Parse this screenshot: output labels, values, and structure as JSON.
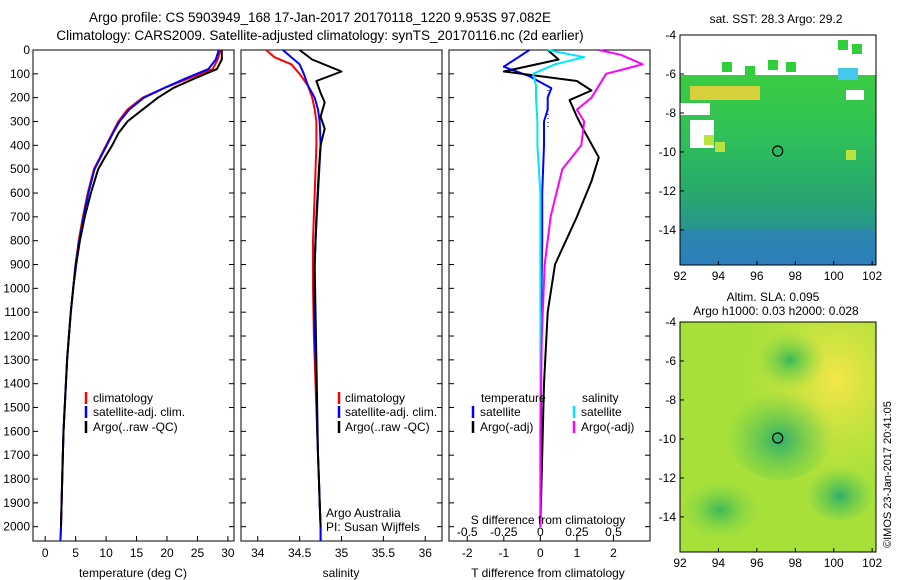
{
  "header": {
    "line1": "Argo profile: CS 5903949_168 17-Jan-2017 20170118_1220 9.953S 97.082E",
    "line2": "Climatology: CARS2009. Satellite-adjusted climatology: synTS_20170116.nc (2d earlier)"
  },
  "colors": {
    "climatology": "#ff0000",
    "satellite": "#0000ff",
    "argo": "#000000",
    "satellite_s": "#00e5ff",
    "argo_s": "#ff00ff"
  },
  "chart_data": [
    {
      "type": "line",
      "xlabel": "temperature (deg C)",
      "ylabel": "",
      "xlim": [
        -2,
        31
      ],
      "ylim": [
        2060,
        0
      ],
      "xticks": [
        0,
        5,
        10,
        15,
        20,
        25,
        30
      ],
      "yticks": [
        0,
        100,
        200,
        300,
        400,
        500,
        600,
        700,
        800,
        900,
        1000,
        1100,
        1200,
        1300,
        1400,
        1500,
        1600,
        1700,
        1800,
        1900,
        2000
      ],
      "legend": [
        "climatology",
        "satellite-adj. clim.",
        "Argo(..raw -QC)"
      ],
      "series": [
        {
          "name": "climatology",
          "color": "#ff0000",
          "x": [
            28.8,
            28.3,
            27.5,
            23.5,
            19.5,
            16.0,
            13.5,
            12.0,
            11.0,
            10.0,
            9.0,
            8.0,
            7.0,
            6.2,
            5.5,
            5.0,
            4.6,
            4.2,
            3.9,
            3.6,
            3.4,
            3.2,
            3.0,
            2.8,
            2.6,
            2.5
          ],
          "y": [
            0,
            40,
            80,
            120,
            160,
            200,
            250,
            300,
            350,
            400,
            450,
            500,
            600,
            700,
            800,
            900,
            1000,
            1100,
            1200,
            1300,
            1400,
            1500,
            1600,
            1800,
            2000,
            2060
          ]
        },
        {
          "name": "satellite-adj. clim.",
          "color": "#0000ff",
          "x": [
            28.5,
            28.0,
            26.8,
            23.0,
            19.5,
            16.2,
            13.8,
            12.2,
            11.1,
            10.1,
            9.1,
            8.1,
            7.1,
            6.3,
            5.6,
            5.0,
            4.6,
            4.2,
            3.9,
            3.6,
            3.4,
            3.2,
            3.0,
            2.8,
            2.6,
            2.5
          ],
          "y": [
            0,
            40,
            80,
            120,
            160,
            200,
            250,
            300,
            350,
            400,
            450,
            500,
            600,
            700,
            800,
            900,
            1000,
            1100,
            1200,
            1300,
            1400,
            1500,
            1600,
            1800,
            2000,
            2060
          ]
        },
        {
          "name": "Argo(..raw -QC)",
          "color": "#000000",
          "x": [
            29.0,
            29.0,
            28.2,
            24.5,
            21.0,
            18.5,
            16.0,
            13.5,
            12.0,
            11.0,
            9.8,
            8.7,
            7.5,
            6.5,
            5.7,
            5.1,
            4.6,
            4.2,
            3.9,
            3.6,
            3.4,
            3.2,
            3.0,
            2.8,
            2.6
          ],
          "y": [
            0,
            40,
            80,
            120,
            160,
            200,
            250,
            300,
            350,
            400,
            450,
            500,
            600,
            700,
            800,
            900,
            1000,
            1100,
            1200,
            1300,
            1400,
            1500,
            1600,
            1800,
            2000
          ]
        }
      ]
    },
    {
      "type": "line",
      "xlabel": "salinity",
      "ylabel": "",
      "xlim": [
        33.8,
        36.2
      ],
      "ylim": [
        2060,
        0
      ],
      "xticks": [
        34,
        34.5,
        35,
        35.5,
        36
      ],
      "legend": [
        "climatology",
        "satellite-adj. clim.",
        "Argo(..raw -QC)"
      ],
      "annotations": [
        "Argo Australia",
        "PI: Susan Wijffels"
      ],
      "series": [
        {
          "name": "climatology",
          "color": "#ff0000",
          "x": [
            34.1,
            34.2,
            34.4,
            34.5,
            34.6,
            34.65,
            34.68,
            34.7,
            34.7,
            34.68,
            34.66,
            34.66,
            34.67,
            34.69,
            34.71,
            34.72,
            34.73,
            34.74,
            34.75,
            34.75
          ],
          "y": [
            0,
            30,
            60,
            100,
            150,
            200,
            250,
            300,
            400,
            600,
            800,
            1000,
            1200,
            1400,
            1600,
            1700,
            1800,
            1900,
            2000,
            2060
          ]
        },
        {
          "name": "satellite-adj. clim.",
          "color": "#0000ff",
          "x": [
            34.3,
            34.4,
            34.5,
            34.55,
            34.6,
            34.68,
            34.72,
            34.74,
            34.75,
            34.72,
            34.69,
            34.67,
            34.68,
            34.7,
            34.71,
            34.72,
            34.73,
            34.74,
            34.75,
            34.75
          ],
          "y": [
            0,
            30,
            60,
            100,
            150,
            200,
            250,
            300,
            400,
            600,
            800,
            1000,
            1200,
            1400,
            1600,
            1700,
            1800,
            1900,
            2000,
            2060
          ]
        },
        {
          "name": "Argo(..raw -QC)",
          "color": "#000000",
          "x": [
            34.5,
            34.65,
            35.0,
            34.7,
            34.75,
            34.8,
            34.75,
            34.8,
            34.75,
            34.73,
            34.7,
            34.68,
            34.69,
            34.7,
            34.71,
            34.72,
            34.73,
            34.74,
            34.75
          ],
          "y": [
            0,
            40,
            90,
            130,
            180,
            220,
            280,
            330,
            400,
            500,
            700,
            900,
            1100,
            1300,
            1500,
            1700,
            1800,
            1900,
            2000
          ]
        }
      ]
    },
    {
      "type": "line",
      "xlabel": "T difference from climatology",
      "xlabel2": "S difference from climatology",
      "ylabel": "",
      "xlim": [
        -2.5,
        3.0
      ],
      "xlim_s": [
        -0.625,
        0.75
      ],
      "ylim": [
        2060,
        0
      ],
      "xticks": [
        -2,
        -1,
        0,
        1,
        2
      ],
      "xticks_s": [
        -0.5,
        -0.25,
        0,
        0.25,
        0.5
      ],
      "xticklabels_s": [
        "-0.5",
        "-0.25",
        "0",
        "0.25",
        "0.5"
      ],
      "legend_titles": [
        "temperature",
        "salinity"
      ],
      "legend": [
        "satellite",
        "Argo(-adj)",
        "satellite",
        "Argo(-adj)"
      ],
      "series": [
        {
          "name": "satellite",
          "color": "#0000ff",
          "x": [
            -0.3,
            -0.6,
            -1.0,
            -0.3,
            0.3,
            0.2,
            0.2,
            0.1,
            0.1,
            0.05,
            0.05,
            0.03,
            0.02,
            0.02,
            0.01,
            0.0
          ],
          "y": [
            0,
            30,
            70,
            110,
            160,
            200,
            250,
            300,
            400,
            600,
            800,
            1000,
            1300,
            1600,
            1800,
            2000
          ]
        },
        {
          "name": "Argo(-adj)",
          "color": "#000000",
          "x": [
            0.2,
            0.5,
            -1.0,
            1.0,
            1.4,
            0.8,
            1.0,
            1.2,
            1.6,
            1.4,
            1.0,
            0.4,
            0.2,
            0.1,
            0.05,
            0.0
          ],
          "y": [
            0,
            40,
            90,
            130,
            170,
            210,
            280,
            340,
            450,
            550,
            700,
            900,
            1100,
            1400,
            1700,
            2000
          ]
        },
        {
          "name": "satellite",
          "color": "#00e5ff",
          "x": [
            0.05,
            0.3,
            0.1,
            -0.05,
            -0.03,
            -0.03,
            -0.02,
            -0.02,
            0.0,
            0.0,
            0.0,
            0.0,
            0.0,
            0.0,
            0.0
          ],
          "y": [
            0,
            30,
            60,
            100,
            150,
            200,
            300,
            400,
            600,
            800,
            1000,
            1300,
            1600,
            1800,
            2000
          ]
        },
        {
          "name": "Argo(-adj)",
          "color": "#ff00ff",
          "x": [
            0.4,
            0.55,
            0.7,
            0.45,
            0.4,
            0.35,
            0.25,
            0.3,
            0.28,
            0.15,
            0.07,
            0.03,
            0.01,
            0.0,
            0.0
          ],
          "y": [
            0,
            20,
            60,
            100,
            150,
            200,
            250,
            300,
            400,
            500,
            700,
            900,
            1200,
            1600,
            2000
          ]
        }
      ]
    },
    {
      "type": "heatmap",
      "title": "sat. SST: 28.3  Argo: 29.2",
      "xlim": [
        92,
        102.2
      ],
      "ylim": [
        -15.8,
        -4
      ],
      "xticks": [
        92,
        94,
        96,
        98,
        100,
        102
      ],
      "yticks": [
        -4,
        -6,
        -8,
        -10,
        -12,
        -14
      ],
      "marker": {
        "lon": 97.082,
        "lat": -9.953
      }
    },
    {
      "type": "heatmap",
      "title": "Altim. SLA: 0.095",
      "subtitle": "Argo h1000: 0.03 h2000: 0.028",
      "xlim": [
        92,
        102.2
      ],
      "ylim": [
        -15.8,
        -4
      ],
      "xticks": [
        92,
        94,
        96,
        98,
        100,
        102
      ],
      "yticks": [
        -4,
        -6,
        -8,
        -10,
        -12,
        -14
      ],
      "marker": {
        "lon": 97.082,
        "lat": -9.953
      }
    }
  ],
  "footer": {
    "stamp": "©IMOS 23-Jan-2017 20:41:05"
  }
}
